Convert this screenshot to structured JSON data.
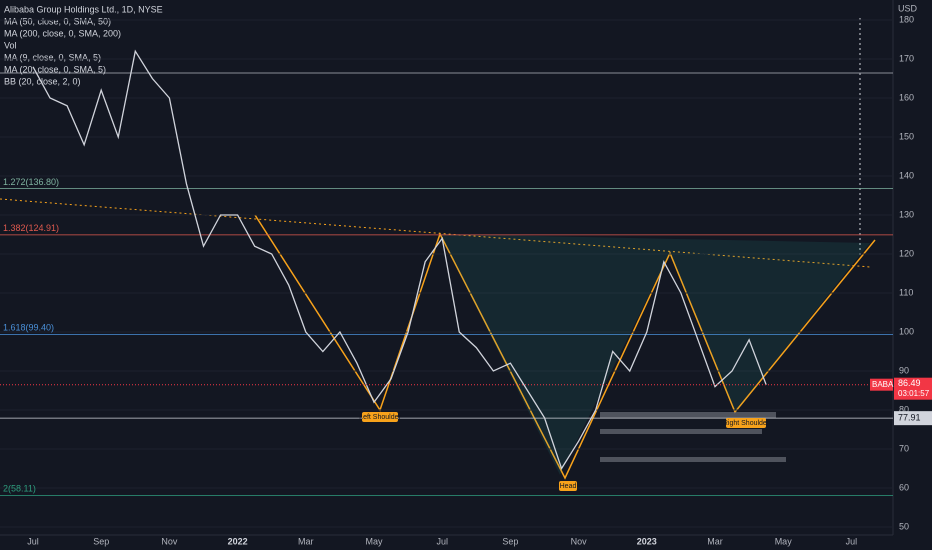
{
  "chart_data": {
    "type": "line",
    "title": "Alibaba Group Holdings Ltd., 1D, NYSE",
    "indicators": [
      "MA (50, close, 0, SMA, 50)",
      "MA (200, close, 0, SMA, 200)",
      "Vol",
      "MA (9, close, 0, SMA, 5)",
      "MA (20, close, 0, SMA, 5)",
      "BB (20, close, 2, 0)"
    ],
    "y_axis_label": "USD",
    "categories": [
      "Jul",
      null,
      null,
      null,
      "Sep",
      null,
      null,
      null,
      "Nov",
      null,
      null,
      null,
      "2022",
      null,
      null,
      null,
      "Mar",
      null,
      null,
      null,
      "May",
      null,
      null,
      null,
      "Jul",
      null,
      null,
      null,
      "Sep",
      null,
      null,
      null,
      "Nov",
      null,
      null,
      null,
      "2023",
      null,
      null,
      null,
      "Mar",
      null,
      null,
      null,
      "May",
      null,
      null,
      null,
      "Jul"
    ],
    "series": [
      {
        "name": "BABA",
        "color": "#d1d4dc",
        "values": [
          168,
          160,
          158,
          148,
          162,
          150,
          172,
          165,
          160,
          138,
          122,
          130,
          130,
          122,
          120,
          112,
          100,
          95,
          100,
          92,
          82,
          88,
          100,
          118,
          124,
          100,
          96,
          90,
          92,
          85,
          78,
          65,
          72,
          80,
          95,
          90,
          100,
          118,
          110,
          98,
          86,
          90,
          98,
          86.49,
          null,
          null,
          null,
          null,
          null
        ]
      }
    ],
    "ylim": [
      50,
      180
    ],
    "yticks": [
      50,
      60,
      70,
      80,
      90,
      100,
      110,
      120,
      130,
      140,
      150,
      160,
      170,
      180
    ],
    "levels": [
      {
        "label": "1.272(136.80)",
        "value": 136.8,
        "color": "#7fb3a0"
      },
      {
        "label": "1.382(124.91)",
        "value": 124.91,
        "color": "#e05a4f"
      },
      {
        "label": "1.618(99.40)",
        "value": 99.4,
        "color": "#4a90d9"
      },
      {
        "label": "2(58.11)",
        "value": 58.11,
        "color": "#2e9e7e"
      }
    ],
    "annotations": [
      "Left Shoulder",
      "Head",
      "Right Shoulder"
    ],
    "symbol": "BABA",
    "last_price": 86.49,
    "countdown": "03:01:57",
    "crosshair_price": 77.91
  }
}
